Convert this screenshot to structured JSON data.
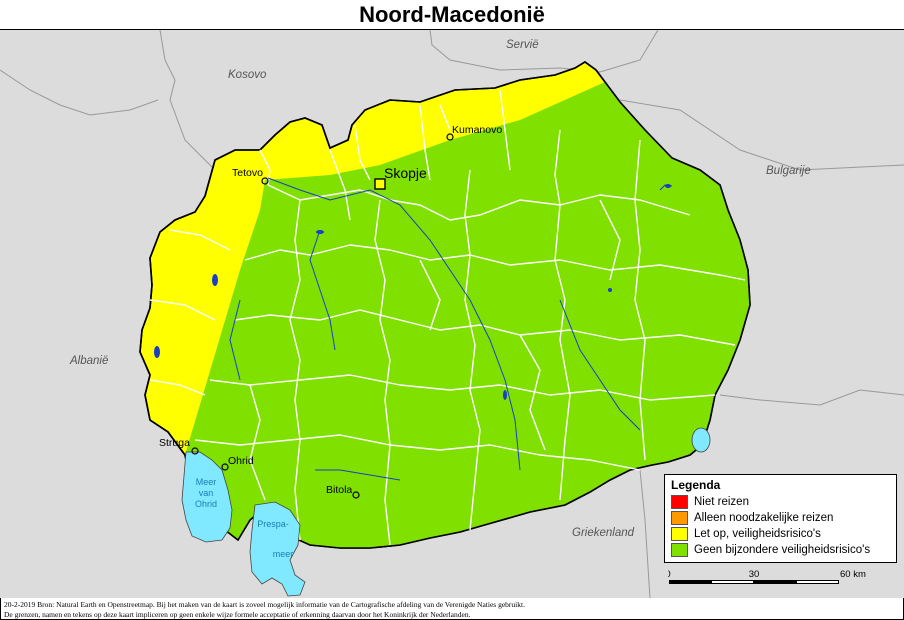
{
  "title": "Noord-Macedonië",
  "countries": {
    "kosovo": "Kosovo",
    "servie": "Servië",
    "bulgarije": "Bulgarije",
    "albanie": "Albanië",
    "griekenland": "Griekenland"
  },
  "cities": {
    "skopje": "Skopje",
    "kumanovo": "Kumanovo",
    "tetovo": "Tetovo",
    "struga": "Struga",
    "ohrid": "Ohrid",
    "bitola": "Bitola"
  },
  "lakes": {
    "ohrid_l1": "Meer",
    "ohrid_l2": "van",
    "ohrid_l3": "Ohrid",
    "prespa_l1": "Prespa-",
    "prespa_l2": "meer"
  },
  "legend": {
    "title": "Legenda",
    "items": [
      {
        "label": "Niet reizen",
        "color": "#ff0000"
      },
      {
        "label": "Alleen noodzakelijke reizen",
        "color": "#ff9900"
      },
      {
        "label": "Let op, veiligheidsrisico's",
        "color": "#ffff00"
      },
      {
        "label": "Geen bijzondere veiligheidsrisico's",
        "color": "#80e000"
      }
    ]
  },
  "scale": {
    "t0": "0",
    "t1": "30",
    "t2": "60 km"
  },
  "footer": {
    "line1": "20-2-2019 Bron: Natural Earth en Openstreetmap. Bij het maken van de kaart is zoveel mogelijk informatie van de Cartografische afdeling van de Verenigde Naties gebruikt.",
    "line2": "De grenzen, namen en tekens op deze kaart impliceren op geen enkele wijze formele acceptatie of erkenning daarvan door het Koninkrijk der Nederlanden."
  },
  "colors": {
    "neighbor": "#dcdcdc",
    "safe": "#80e000",
    "caution": "#ffff00",
    "lake": "#80e8ff"
  }
}
